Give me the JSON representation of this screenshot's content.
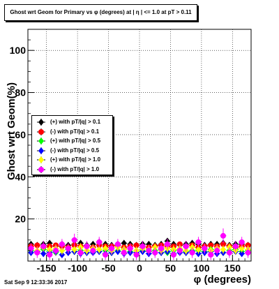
{
  "title": "Ghost wrt Geom for Primary vs φ (degrees) at | η | <= 1.0 at pT > 0.11",
  "footer": "Sat Sep  9 12:33:36 2017",
  "colors": {
    "c1": "#000000",
    "c2": "#ff0000",
    "c3": "#00ff00",
    "c4": "#0000ff",
    "c5": "#ffff00",
    "c6": "#ff00ff"
  },
  "chart_data": {
    "type": "scatter",
    "xlabel": "φ (degrees)",
    "ylabel": "Ghost wrt Geom(%)",
    "xlim": [
      -180,
      180
    ],
    "ylim": [
      0,
      110
    ],
    "xticks": [
      -150,
      -100,
      -50,
      0,
      50,
      100,
      150
    ],
    "yticks": [
      20,
      40,
      60,
      80,
      100
    ],
    "grid": true,
    "legend_position": "left",
    "series": [
      {
        "name": "(+) with pT/|q| > 0.1",
        "color": "#000000",
        "marker": "diamond",
        "x": [
          -175,
          -165,
          -155,
          -145,
          -135,
          -125,
          -115,
          -105,
          -95,
          -85,
          -75,
          -65,
          -55,
          -45,
          -35,
          -25,
          -15,
          -5,
          5,
          15,
          25,
          35,
          45,
          55,
          65,
          75,
          85,
          95,
          105,
          115,
          125,
          135,
          145,
          155,
          165,
          175
        ],
        "y": [
          8,
          7.5,
          8,
          8.5,
          7,
          8,
          7.5,
          8,
          8.5,
          7.5,
          8,
          9,
          8,
          7.5,
          8,
          8.5,
          8,
          7.5,
          8,
          8,
          7.5,
          8,
          9.5,
          8,
          7.5,
          8,
          8.5,
          8,
          7.5,
          8,
          8,
          8.5,
          7.5,
          8,
          8,
          7.5
        ],
        "err": [
          1,
          1,
          1,
          1,
          1,
          1,
          1,
          1,
          1,
          1,
          1,
          1,
          1,
          1,
          1,
          1,
          1,
          1,
          1,
          1,
          1,
          1,
          1,
          1,
          1,
          1,
          1,
          1,
          1,
          1,
          1,
          1,
          1,
          1,
          1,
          1
        ]
      },
      {
        "name": "(-) with pT/|q| > 0.1",
        "color": "#ff0000",
        "marker": "circle",
        "x": [
          -175,
          -165,
          -155,
          -145,
          -135,
          -125,
          -115,
          -105,
          -95,
          -85,
          -75,
          -65,
          -55,
          -45,
          -35,
          -25,
          -15,
          -5,
          5,
          15,
          25,
          35,
          45,
          55,
          65,
          75,
          85,
          95,
          105,
          115,
          125,
          135,
          145,
          155,
          165,
          175
        ],
        "y": [
          7,
          7.5,
          6.5,
          7,
          7.5,
          7,
          6.5,
          7.5,
          7,
          7,
          6.5,
          7.5,
          7,
          7,
          7.5,
          6.5,
          7,
          7.5,
          7,
          6.5,
          7,
          7.5,
          7,
          7,
          8,
          7,
          7.5,
          6.5,
          7,
          7.5,
          7,
          8,
          7,
          6.5,
          7,
          7.5
        ],
        "err": [
          1,
          1,
          1,
          1,
          1,
          1,
          1,
          1,
          1,
          1,
          1,
          1,
          1,
          1,
          1,
          1,
          1,
          1,
          1,
          1,
          1,
          1,
          1,
          1,
          1,
          1,
          1,
          1,
          1,
          1,
          1,
          1,
          1,
          1,
          1,
          1
        ]
      },
      {
        "name": "(+) with pT/|q| > 0.5",
        "color": "#00ff00",
        "marker": "diamond",
        "x": [
          -175,
          -165,
          -155,
          -145,
          -135,
          -125,
          -115,
          -105,
          -95,
          -85,
          -75,
          -65,
          -55,
          -45,
          -35,
          -25,
          -15,
          -5,
          5,
          15,
          25,
          35,
          45,
          55,
          65,
          75,
          85,
          95,
          105,
          115,
          125,
          135,
          145,
          155,
          165,
          175
        ],
        "y": [
          5,
          4.5,
          5.5,
          5,
          4,
          5,
          5.5,
          4.5,
          5,
          5,
          4.5,
          5.5,
          5,
          4,
          5,
          5.5,
          4.5,
          5,
          5,
          4.5,
          5,
          5.5,
          4,
          5,
          5.5,
          4.5,
          5,
          5,
          4.5,
          5.5,
          5,
          4,
          5,
          5.5,
          4.5,
          5
        ],
        "err": [
          1.5,
          1.5,
          1.5,
          1.5,
          1.5,
          1.5,
          1.5,
          1.5,
          1.5,
          1.5,
          1.5,
          1.5,
          1.5,
          1.5,
          1.5,
          1.5,
          1.5,
          1.5,
          1.5,
          1.5,
          1.5,
          1.5,
          1.5,
          1.5,
          1.5,
          1.5,
          1.5,
          1.5,
          1.5,
          1.5,
          1.5,
          1.5,
          1.5,
          1.5,
          1.5,
          1.5
        ]
      },
      {
        "name": "(-) with pT/|q| > 0.5",
        "color": "#0000ff",
        "marker": "diamond",
        "x": [
          -175,
          -165,
          -155,
          -145,
          -135,
          -125,
          -115,
          -105,
          -95,
          -85,
          -75,
          -65,
          -55,
          -45,
          -35,
          -25,
          -15,
          -5,
          5,
          15,
          25,
          35,
          45,
          55,
          65,
          75,
          85,
          95,
          105,
          115,
          125,
          135,
          145,
          155,
          165,
          175
        ],
        "y": [
          4,
          4.5,
          3.5,
          4,
          4.5,
          3,
          4,
          4.5,
          3.5,
          4,
          4,
          4.5,
          3.5,
          4,
          4.5,
          3.5,
          4,
          4,
          4.5,
          3.5,
          4,
          4,
          4.5,
          3.5,
          4,
          4,
          4.5,
          3.5,
          4,
          4.5,
          3.5,
          4,
          4,
          4.5,
          3.5,
          4
        ],
        "err": [
          1.5,
          1.5,
          1.5,
          1.5,
          1.5,
          1.5,
          1.5,
          1.5,
          1.5,
          1.5,
          1.5,
          1.5,
          1.5,
          1.5,
          1.5,
          1.5,
          1.5,
          1.5,
          1.5,
          1.5,
          1.5,
          1.5,
          1.5,
          1.5,
          1.5,
          1.5,
          1.5,
          1.5,
          1.5,
          1.5,
          1.5,
          1.5,
          1.5,
          1.5,
          1.5,
          1.5
        ]
      },
      {
        "name": "(+) with pT/|q| > 1.0",
        "color": "#ffff00",
        "marker": "diamond",
        "x": [
          -175,
          -165,
          -155,
          -145,
          -135,
          -125,
          -115,
          -105,
          -95,
          -85,
          -75,
          -65,
          -55,
          -45,
          -35,
          -25,
          -15,
          -5,
          5,
          15,
          25,
          35,
          45,
          55,
          65,
          75,
          85,
          95,
          105,
          115,
          125,
          135,
          145,
          155,
          165,
          175
        ],
        "y": [
          6,
          5,
          6.5,
          5.5,
          6,
          5,
          6,
          5.5,
          6.5,
          5,
          6,
          5.5,
          6,
          5,
          6.5,
          5.5,
          6,
          5,
          6,
          5.5,
          6.5,
          5,
          6,
          5.5,
          6,
          5,
          6.5,
          5.5,
          6,
          5,
          6,
          5.5,
          6.5,
          5,
          6,
          5.5
        ],
        "err": [
          2,
          2,
          2,
          2,
          2,
          2,
          2,
          2,
          2,
          2,
          2,
          2,
          2,
          2,
          2,
          2,
          2,
          2,
          2,
          2,
          2,
          2,
          2,
          2,
          2,
          2,
          2,
          2,
          2,
          2,
          2,
          2,
          2,
          2,
          2,
          2
        ]
      },
      {
        "name": "(-) with pT/|q| > 1.0",
        "color": "#ff00ff",
        "marker": "circle",
        "x": [
          -175,
          -165,
          -155,
          -145,
          -135,
          -125,
          -115,
          -105,
          -95,
          -85,
          -75,
          -65,
          -55,
          -45,
          -35,
          -25,
          -15,
          -5,
          5,
          15,
          25,
          35,
          45,
          55,
          65,
          75,
          85,
          95,
          105,
          115,
          125,
          135,
          145,
          155,
          165,
          175
        ],
        "y": [
          6,
          4,
          7,
          3,
          5,
          8,
          6,
          10,
          4,
          7,
          5,
          9,
          3,
          6,
          8,
          4,
          6,
          3,
          7,
          5,
          4,
          6,
          8,
          3,
          5,
          7,
          4,
          9,
          6,
          3,
          5,
          12,
          4,
          7,
          9,
          4
        ],
        "err": [
          2.5,
          2.5,
          2.5,
          2.5,
          2.5,
          2.5,
          2.5,
          3,
          2.5,
          2.5,
          2.5,
          2.5,
          2.5,
          2.5,
          2.5,
          2.5,
          2.5,
          2.5,
          2.5,
          2.5,
          2.5,
          2.5,
          2.5,
          2.5,
          2.5,
          2.5,
          2.5,
          2.5,
          2.5,
          2.5,
          2.5,
          3.5,
          2.5,
          2.5,
          2.5,
          2.5
        ]
      }
    ]
  }
}
